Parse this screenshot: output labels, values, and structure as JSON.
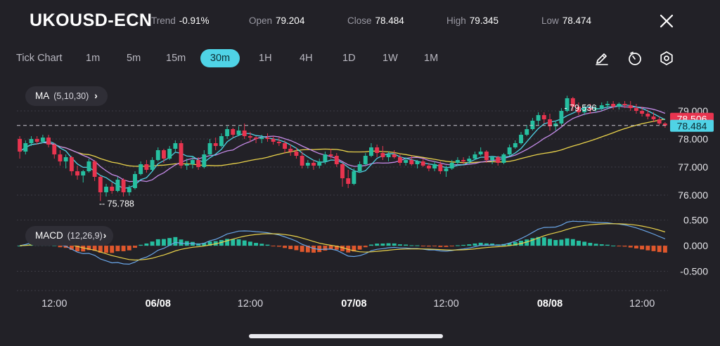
{
  "header": {
    "symbol": "UKOUSD-ECN",
    "trend_label": "Trend",
    "trend_value": "-0.91%",
    "open_label": "Open",
    "open_value": "79.204",
    "close_label": "Close",
    "close_value": "78.484",
    "high_label": "High",
    "high_value": "79.345",
    "low_label": "Low",
    "low_value": "78.474"
  },
  "timeframes": [
    "Tick Chart",
    "1m",
    "5m",
    "15m",
    "30m",
    "1H",
    "4H",
    "1D",
    "1W",
    "1M"
  ],
  "active_timeframe": "30m",
  "toolbar": {
    "icons": [
      "pencil-icon",
      "timer-icon",
      "settings-icon"
    ]
  },
  "indicators": {
    "ma": {
      "label": "MA",
      "params": "(5,10,30)"
    },
    "macd": {
      "label": "MACD",
      "params": "(12,26,9)"
    }
  },
  "colors": {
    "up": "#26bfa0",
    "down": "#e8344f",
    "ma5": "#4fd3e6",
    "ma10": "#c58be8",
    "ma30": "#e9d24b",
    "accent": "#4fd3e6",
    "background": "#222127"
  },
  "chart_data": {
    "type": "candlestick",
    "price_axis_ticks": [
      "79.000",
      "78.000",
      "77.000",
      "76.000"
    ],
    "price_range": [
      75.2,
      79.95
    ],
    "macd_axis_ticks": [
      "0.500",
      "0.000",
      "-0.500"
    ],
    "macd_range": [
      -0.85,
      0.55
    ],
    "time_labels": [
      "12:00",
      "06/08",
      "12:00",
      "07/08",
      "12:00",
      "08/08",
      "12:00"
    ],
    "time_label_bold": [
      false,
      true,
      false,
      true,
      false,
      true,
      false
    ],
    "time_label_positions": [
      6,
      24,
      40,
      58,
      74,
      92,
      108
    ],
    "n_bars": 113,
    "annotations": {
      "high": "79.536",
      "high_bar": 94,
      "low": "75.788",
      "low_bar": 14
    },
    "price_tags": {
      "upper": "78.506",
      "lower": "78.484"
    },
    "ohlc": [
      [
        78.0,
        78.1,
        77.3,
        77.55
      ],
      [
        77.55,
        77.95,
        77.45,
        77.85
      ],
      [
        77.85,
        78.1,
        77.75,
        78.0
      ],
      [
        78.0,
        78.1,
        77.8,
        77.9
      ],
      [
        77.9,
        78.15,
        77.85,
        78.05
      ],
      [
        78.05,
        78.15,
        77.7,
        77.8
      ],
      [
        77.8,
        77.85,
        77.3,
        77.45
      ],
      [
        77.45,
        77.6,
        77.05,
        77.2
      ],
      [
        77.2,
        77.45,
        76.95,
        77.35
      ],
      [
        77.35,
        77.4,
        76.7,
        76.85
      ],
      [
        76.85,
        77.05,
        76.55,
        76.7
      ],
      [
        76.7,
        76.9,
        76.45,
        76.85
      ],
      [
        76.85,
        77.3,
        76.8,
        77.2
      ],
      [
        77.2,
        77.25,
        76.5,
        76.65
      ],
      [
        76.65,
        76.7,
        75.79,
        76.1
      ],
      [
        76.1,
        76.4,
        75.95,
        76.3
      ],
      [
        76.3,
        76.45,
        76.05,
        76.15
      ],
      [
        76.15,
        76.65,
        76.1,
        76.55
      ],
      [
        76.55,
        76.6,
        75.95,
        76.1
      ],
      [
        76.1,
        76.35,
        75.98,
        76.25
      ],
      [
        76.25,
        76.85,
        76.2,
        76.75
      ],
      [
        76.75,
        77.2,
        76.7,
        77.1
      ],
      [
        77.1,
        77.25,
        76.8,
        76.9
      ],
      [
        76.9,
        77.35,
        76.85,
        77.25
      ],
      [
        77.25,
        77.7,
        77.2,
        77.6
      ],
      [
        77.6,
        77.65,
        77.15,
        77.3
      ],
      [
        77.3,
        77.75,
        77.25,
        77.65
      ],
      [
        77.65,
        77.95,
        77.55,
        77.85
      ],
      [
        77.85,
        77.95,
        76.95,
        77.05
      ],
      [
        77.05,
        77.3,
        76.9,
        77.1
      ],
      [
        77.1,
        77.4,
        76.95,
        77.25
      ],
      [
        77.25,
        77.35,
        76.9,
        77.0
      ],
      [
        77.0,
        77.6,
        76.95,
        77.45
      ],
      [
        77.45,
        78.0,
        77.4,
        77.85
      ],
      [
        77.85,
        78.05,
        77.6,
        77.75
      ],
      [
        77.75,
        78.2,
        77.7,
        78.1
      ],
      [
        78.1,
        78.45,
        78.0,
        78.35
      ],
      [
        78.35,
        78.4,
        78.05,
        78.15
      ],
      [
        78.15,
        78.45,
        78.1,
        78.3
      ],
      [
        78.3,
        78.55,
        78.0,
        78.1
      ],
      [
        78.1,
        78.25,
        77.9,
        78.05
      ],
      [
        78.05,
        78.1,
        77.85,
        78.0
      ],
      [
        78.0,
        78.15,
        77.85,
        78.05
      ],
      [
        78.05,
        78.2,
        77.9,
        78.0
      ],
      [
        78.0,
        78.1,
        77.8,
        77.9
      ],
      [
        77.9,
        78.05,
        77.75,
        77.85
      ],
      [
        77.85,
        77.95,
        77.5,
        77.65
      ],
      [
        77.65,
        77.8,
        77.4,
        77.55
      ],
      [
        77.55,
        77.7,
        77.3,
        77.4
      ],
      [
        77.4,
        77.55,
        76.95,
        77.05
      ],
      [
        77.05,
        77.25,
        76.95,
        77.15
      ],
      [
        77.15,
        77.25,
        76.9,
        77.05
      ],
      [
        77.05,
        77.3,
        76.95,
        77.2
      ],
      [
        77.2,
        77.55,
        77.1,
        77.45
      ],
      [
        77.45,
        77.65,
        77.3,
        77.4
      ],
      [
        77.4,
        77.5,
        77.0,
        77.1
      ],
      [
        77.1,
        77.15,
        76.3,
        76.6
      ],
      [
        76.6,
        76.9,
        76.25,
        76.4
      ],
      [
        76.4,
        76.95,
        76.35,
        76.85
      ],
      [
        76.85,
        77.2,
        76.8,
        77.1
      ],
      [
        77.1,
        77.5,
        77.05,
        77.4
      ],
      [
        77.4,
        77.85,
        77.35,
        77.7
      ],
      [
        77.7,
        77.8,
        77.35,
        77.5
      ],
      [
        77.5,
        77.75,
        77.25,
        77.35
      ],
      [
        77.35,
        77.55,
        77.2,
        77.45
      ],
      [
        77.45,
        77.6,
        77.3,
        77.35
      ],
      [
        77.35,
        77.45,
        77.05,
        77.15
      ],
      [
        77.15,
        77.35,
        77.05,
        77.25
      ],
      [
        77.25,
        77.4,
        77.05,
        77.1
      ],
      [
        77.1,
        77.25,
        76.95,
        77.2
      ],
      [
        77.2,
        77.3,
        77.0,
        77.05
      ],
      [
        77.05,
        77.15,
        76.85,
        76.95
      ],
      [
        76.95,
        77.2,
        76.85,
        77.1
      ],
      [
        77.1,
        77.2,
        76.75,
        76.85
      ],
      [
        76.85,
        77.05,
        76.65,
        76.95
      ],
      [
        76.95,
        77.25,
        76.9,
        77.15
      ],
      [
        77.15,
        77.35,
        77.05,
        77.25
      ],
      [
        77.25,
        77.35,
        77.1,
        77.2
      ],
      [
        77.2,
        77.4,
        77.1,
        77.3
      ],
      [
        77.3,
        77.55,
        77.25,
        77.45
      ],
      [
        77.45,
        77.7,
        77.4,
        77.55
      ],
      [
        77.55,
        77.6,
        77.15,
        77.25
      ],
      [
        77.25,
        77.4,
        77.1,
        77.35
      ],
      [
        77.35,
        77.4,
        77.05,
        77.15
      ],
      [
        77.15,
        77.5,
        77.1,
        77.45
      ],
      [
        77.45,
        77.8,
        77.4,
        77.7
      ],
      [
        77.7,
        77.95,
        77.65,
        77.85
      ],
      [
        77.85,
        78.25,
        77.8,
        78.15
      ],
      [
        78.15,
        78.5,
        78.1,
        78.35
      ],
      [
        78.35,
        78.75,
        78.3,
        78.65
      ],
      [
        78.65,
        78.95,
        78.5,
        78.85
      ],
      [
        78.85,
        78.95,
        78.55,
        78.7
      ],
      [
        78.7,
        78.9,
        78.3,
        78.45
      ],
      [
        78.45,
        78.65,
        78.3,
        78.55
      ],
      [
        78.55,
        79.1,
        78.5,
        79.0
      ],
      [
        79.0,
        79.54,
        78.95,
        79.45
      ],
      [
        79.45,
        79.5,
        79.0,
        79.15
      ],
      [
        79.15,
        79.3,
        78.85,
        78.95
      ],
      [
        78.95,
        79.2,
        78.85,
        79.1
      ],
      [
        79.1,
        79.25,
        78.9,
        79.05
      ],
      [
        79.05,
        79.2,
        78.95,
        79.1
      ],
      [
        79.1,
        79.3,
        79.0,
        79.2
      ],
      [
        79.2,
        79.35,
        79.05,
        79.25
      ],
      [
        79.25,
        79.35,
        79.05,
        79.15
      ],
      [
        79.15,
        79.3,
        79.05,
        79.25
      ],
      [
        79.25,
        79.35,
        79.1,
        79.2
      ],
      [
        79.2,
        79.35,
        79.0,
        79.1
      ],
      [
        79.1,
        79.25,
        78.9,
        79.0
      ],
      [
        79.0,
        79.15,
        78.8,
        78.9
      ],
      [
        78.9,
        79.05,
        78.7,
        78.8
      ],
      [
        78.8,
        78.95,
        78.6,
        78.7
      ],
      [
        78.7,
        78.8,
        78.5,
        78.55
      ],
      [
        78.55,
        78.6,
        78.4,
        78.48
      ]
    ]
  }
}
